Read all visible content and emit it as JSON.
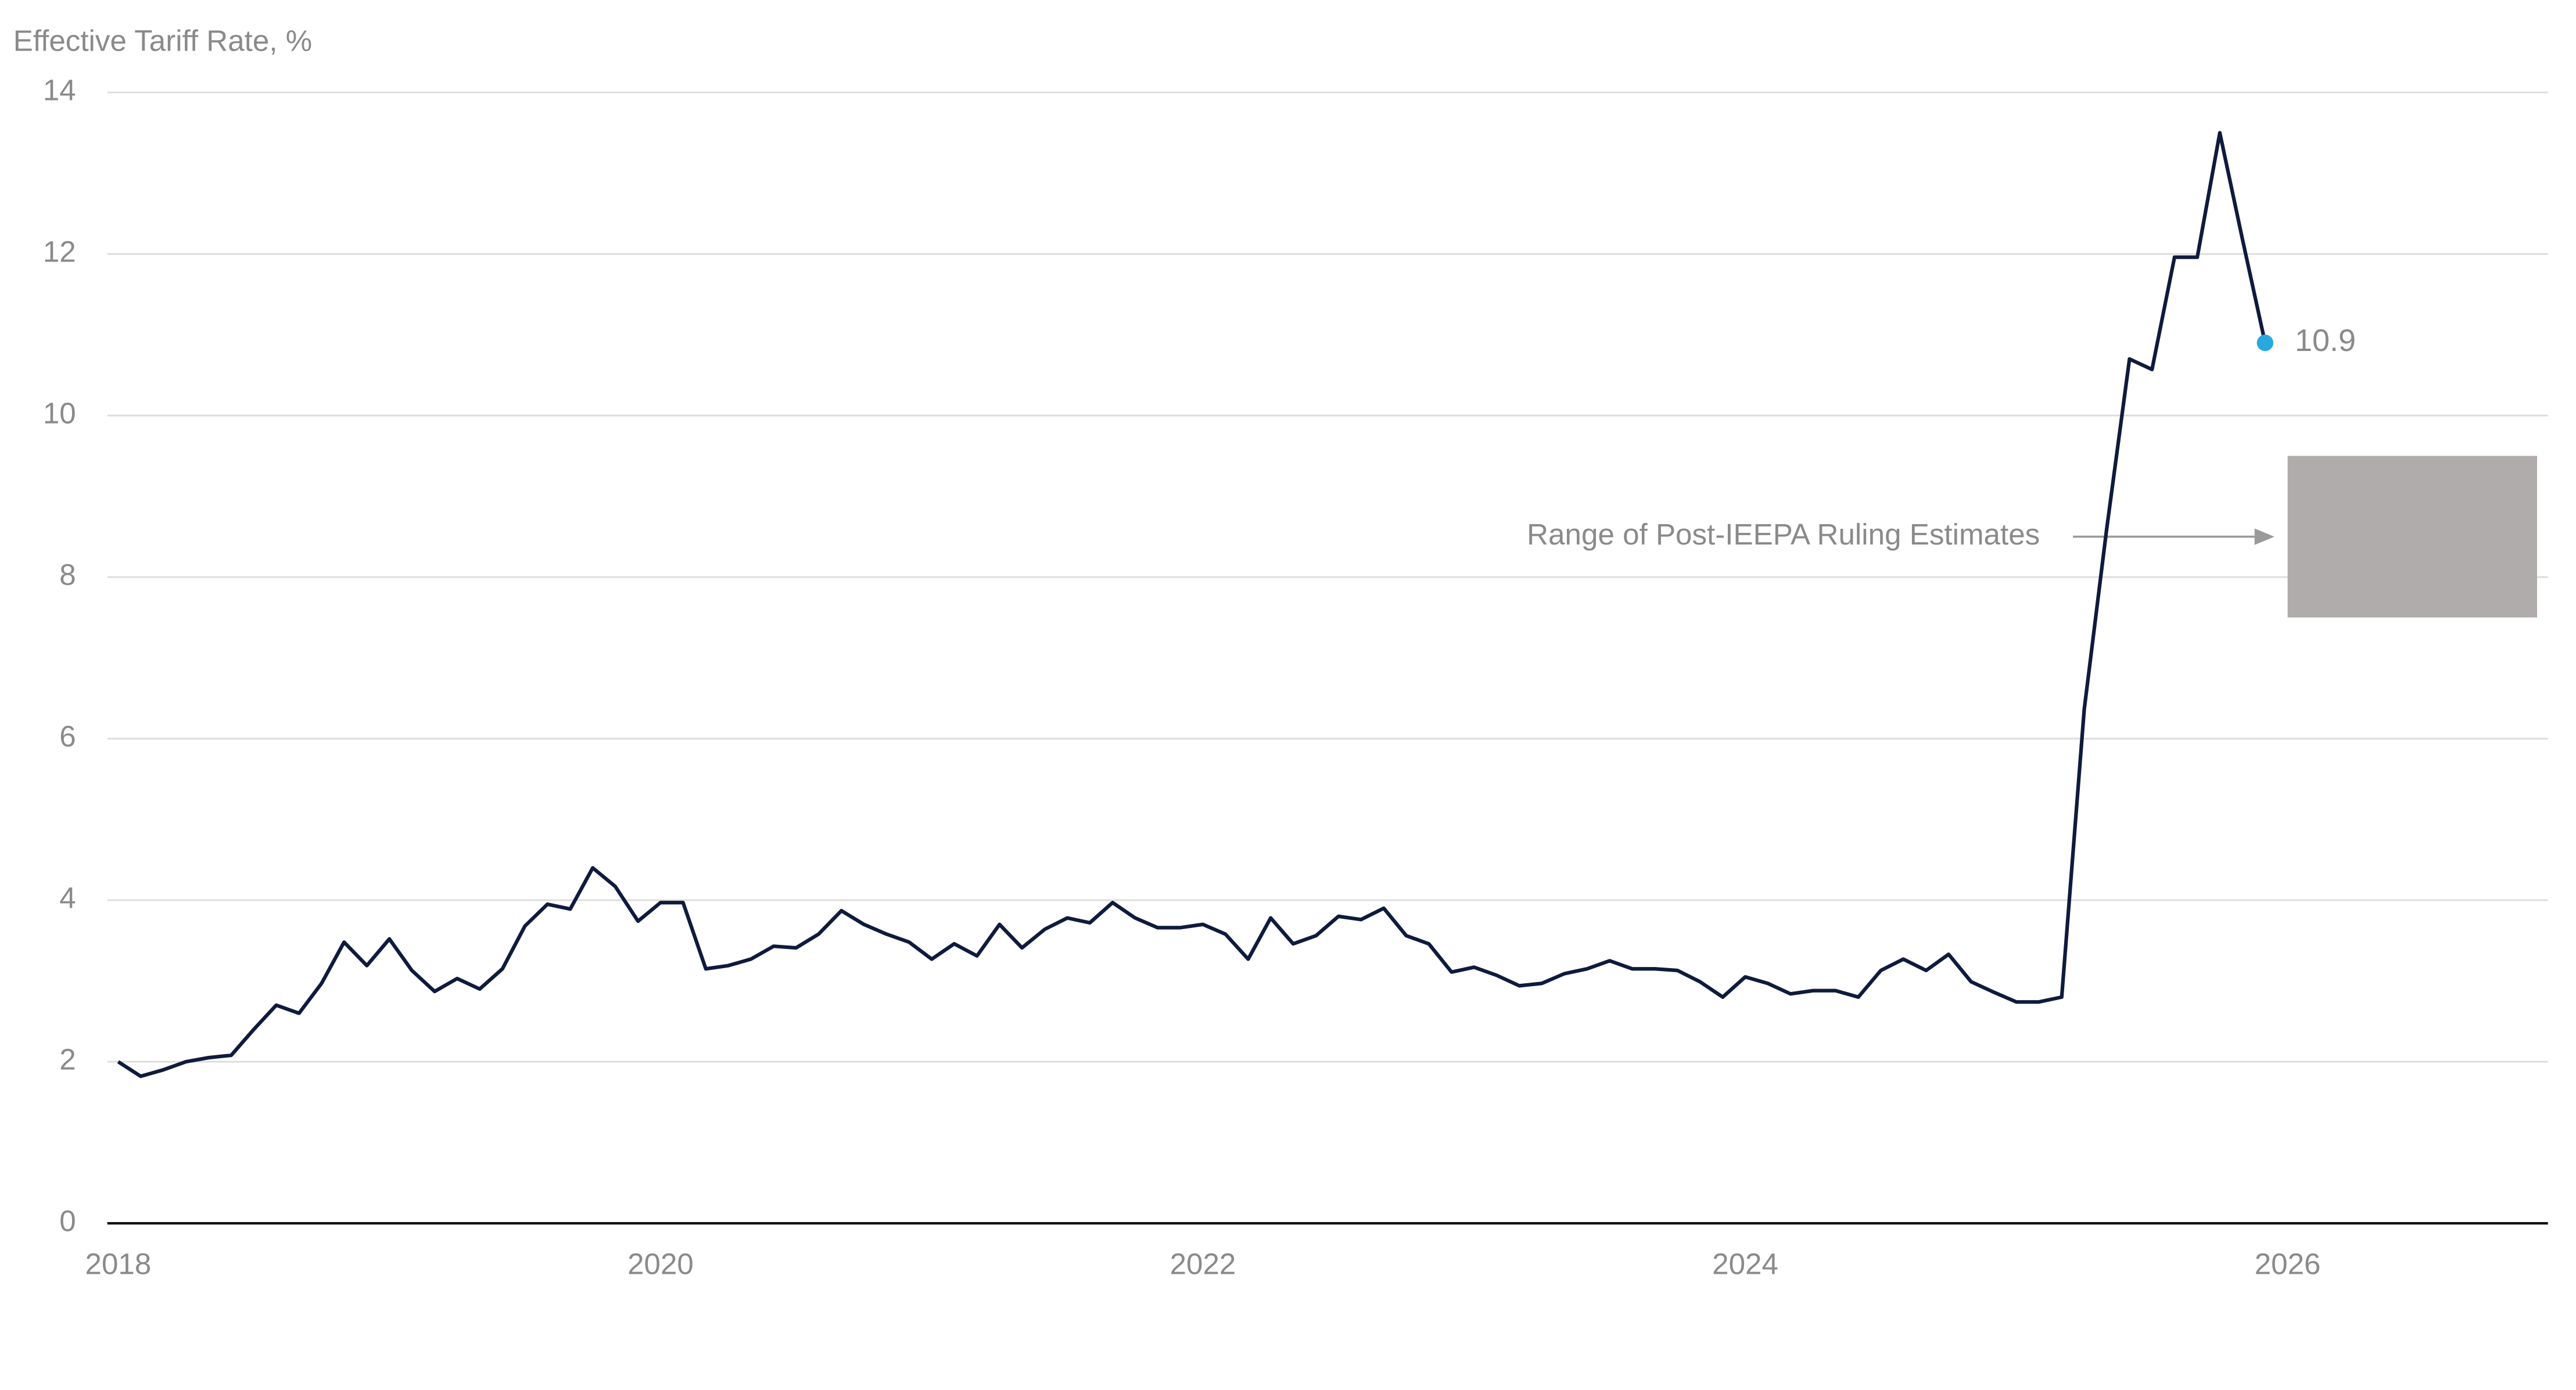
{
  "chart_data": {
    "type": "line",
    "y_label": "Effective Tariff Rate, %",
    "x": [
      2018,
      2018.083,
      2018.167,
      2018.25,
      2018.333,
      2018.417,
      2018.5,
      2018.583,
      2018.667,
      2018.75,
      2018.833,
      2018.917,
      2019,
      2019.083,
      2019.167,
      2019.25,
      2019.333,
      2019.417,
      2019.5,
      2019.583,
      2019.667,
      2019.75,
      2019.833,
      2019.917,
      2020,
      2020.083,
      2020.167,
      2020.25,
      2020.333,
      2020.417,
      2020.5,
      2020.583,
      2020.667,
      2020.75,
      2020.833,
      2020.917,
      2021,
      2021.083,
      2021.167,
      2021.25,
      2021.333,
      2021.417,
      2021.5,
      2021.583,
      2021.667,
      2021.75,
      2021.833,
      2021.917,
      2022,
      2022.083,
      2022.167,
      2022.25,
      2022.333,
      2022.417,
      2022.5,
      2022.583,
      2022.667,
      2022.75,
      2022.833,
      2022.917,
      2023,
      2023.083,
      2023.167,
      2023.25,
      2023.333,
      2023.417,
      2023.5,
      2023.583,
      2023.667,
      2023.75,
      2023.833,
      2023.917,
      2024,
      2024.083,
      2024.167,
      2024.25,
      2024.333,
      2024.417,
      2024.5,
      2024.583,
      2024.667,
      2024.75,
      2024.833,
      2024.917,
      2025,
      2025.083,
      2025.167,
      2025.25,
      2025.333,
      2025.417,
      2025.5,
      2025.583,
      2025.667,
      2025.75,
      2025.833,
      2025.917
    ],
    "series": [
      {
        "color": "#0f1b3d",
        "values": [
          2.0,
          1.82,
          1.9,
          2.0,
          2.05,
          2.08,
          2.4,
          2.7,
          2.6,
          2.97,
          3.48,
          3.19,
          3.52,
          3.13,
          2.87,
          3.03,
          2.9,
          3.15,
          3.68,
          3.95,
          3.89,
          4.4,
          4.17,
          3.74,
          3.97,
          3.97,
          3.15,
          3.19,
          3.27,
          3.43,
          3.41,
          3.58,
          3.87,
          3.7,
          3.58,
          3.48,
          3.27,
          3.46,
          3.31,
          3.7,
          3.41,
          3.64,
          3.78,
          3.72,
          3.97,
          3.78,
          3.66,
          3.66,
          3.7,
          3.58,
          3.27,
          3.78,
          3.46,
          3.56,
          3.8,
          3.76,
          3.9,
          3.56,
          3.46,
          3.11,
          3.17,
          3.07,
          2.94,
          2.97,
          3.09,
          3.15,
          3.25,
          3.15,
          3.15,
          3.13,
          2.99,
          2.8,
          3.05,
          2.97,
          2.84,
          2.88,
          2.88,
          2.8,
          3.13,
          3.27,
          3.13,
          3.33,
          2.99,
          2.86,
          2.74,
          2.74,
          2.8,
          6.36,
          8.6,
          10.7,
          10.57,
          11.96,
          11.96,
          13.5,
          12.19,
          10.9
        ]
      }
    ],
    "last_point_color": "#29a8e0",
    "range_box": {
      "label": "Range of Post-IEEPA Ruling Estimates",
      "xlim": [
        2026,
        2026.92
      ],
      "ylim": [
        7.5,
        9.5
      ],
      "color": "#b0acab"
    },
    "xlim": [
      2017.96,
      2026.96
    ],
    "ylim": [
      0,
      14
    ],
    "xticks": [
      2018,
      2020,
      2022,
      2024,
      2026
    ],
    "yticks": [
      0,
      2,
      4,
      6,
      8,
      10,
      12,
      14
    ],
    "grid": true
  }
}
